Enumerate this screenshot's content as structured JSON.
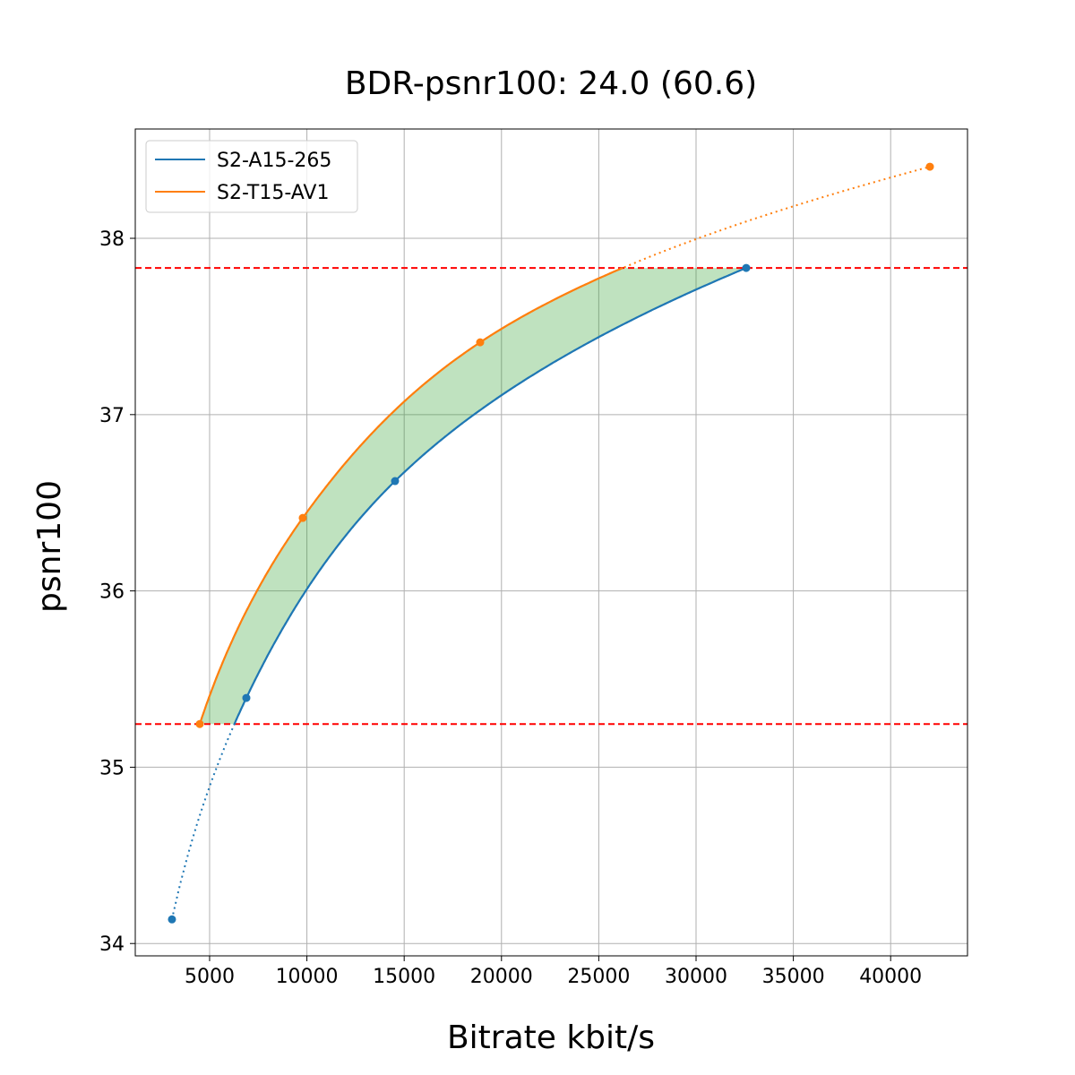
{
  "chart_data": {
    "type": "line",
    "title": "BDR-psnr100: 24.0 (60.6)",
    "xlabel": "Bitrate kbit/s",
    "ylabel": "psnr100",
    "xlim": [
      1180,
      43950
    ],
    "ylim": [
      33.93,
      38.62
    ],
    "xticks": [
      5000,
      10000,
      15000,
      20000,
      25000,
      30000,
      35000,
      40000
    ],
    "yticks": [
      34,
      35,
      36,
      37,
      38
    ],
    "grid": true,
    "legend_position": "top-left",
    "series": [
      {
        "name": "S2-A15-265",
        "color": "#1f77b4",
        "x": [
          3066,
          6888,
          14530,
          32578
        ],
        "y": [
          34.137,
          35.393,
          36.623,
          37.832
        ]
      },
      {
        "name": "S2-T15-AV1",
        "color": "#ff7f0e",
        "x": [
          4494,
          9788,
          18904,
          42017
        ],
        "y": [
          35.245,
          36.414,
          37.41,
          38.406
        ]
      }
    ],
    "overlap_range": [
      35.245,
      37.832
    ],
    "reference_line_color": "#ff0000",
    "fill_color": "#2ca02c"
  }
}
